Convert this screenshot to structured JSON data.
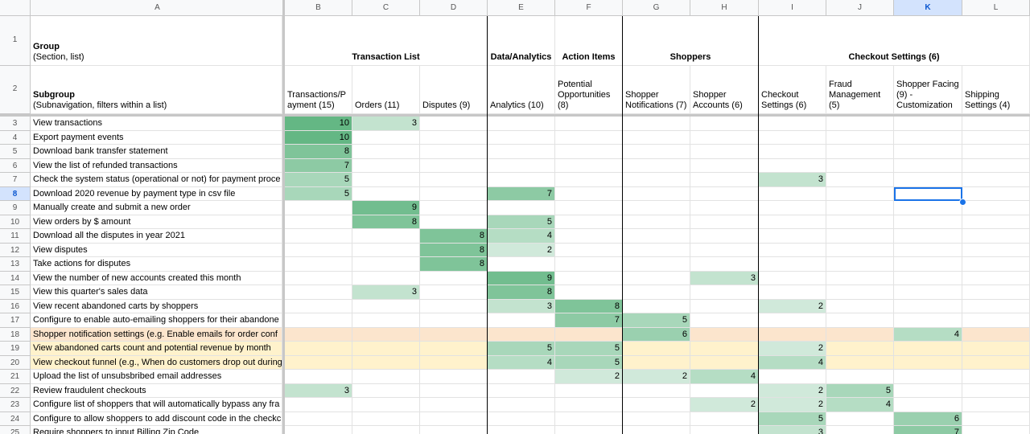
{
  "column_letters": [
    "A",
    "B",
    "C",
    "D",
    "E",
    "F",
    "G",
    "H",
    "I",
    "J",
    "K",
    "L"
  ],
  "selected_column": "K",
  "selected_row": "8",
  "header_rows": [
    {
      "row": "1",
      "title": "Group",
      "subtitle": "(Section, list)",
      "cells": [
        "Transaction List",
        null,
        null,
        "Data/Analytics",
        "Action Items",
        "Shoppers",
        null,
        "Checkout Settings (6)",
        null,
        null,
        null
      ]
    },
    {
      "row": "2",
      "title": "Subgroup",
      "subtitle": "(Subnavigation, filters within a list)",
      "cells": [
        "Transactions/P ayment (15)",
        "Orders (11)",
        "Disputes (9)",
        "Analytics (10)",
        "Potential Opportunities (8)",
        "Shopper Notifications (7)",
        "Shopper Accounts (6)",
        "Checkout Settings (6)",
        "Fraud Management (5)",
        "Shopper Facing (9) - Customization",
        "Shipping Settings (4)"
      ]
    }
  ],
  "rows": [
    {
      "row": "3",
      "label": "View transactions",
      "values": [
        10,
        3,
        null,
        null,
        null,
        null,
        null,
        null,
        null,
        null,
        null
      ]
    },
    {
      "row": "4",
      "label": "Export payment events",
      "values": [
        10,
        null,
        null,
        null,
        null,
        null,
        null,
        null,
        null,
        null,
        null
      ]
    },
    {
      "row": "5",
      "label": "Download bank transfer statement",
      "values": [
        8,
        null,
        null,
        null,
        null,
        null,
        null,
        null,
        null,
        null,
        null
      ]
    },
    {
      "row": "6",
      "label": "View the list of refunded transactions",
      "values": [
        7,
        null,
        null,
        null,
        null,
        null,
        null,
        null,
        null,
        null,
        null
      ]
    },
    {
      "row": "7",
      "label": "Check the system status (operational or not) for payment proce",
      "values": [
        5,
        null,
        null,
        null,
        null,
        null,
        null,
        3,
        null,
        null,
        null
      ]
    },
    {
      "row": "8",
      "label": "Download 2020 revenue by payment type in csv file",
      "values": [
        5,
        null,
        null,
        7,
        null,
        null,
        null,
        null,
        null,
        null,
        null
      ]
    },
    {
      "row": "9",
      "label": "Manually create and submit a new order",
      "values": [
        null,
        9,
        null,
        null,
        null,
        null,
        null,
        null,
        null,
        null,
        null
      ]
    },
    {
      "row": "10",
      "label": "View orders by $ amount",
      "values": [
        null,
        8,
        null,
        5,
        null,
        null,
        null,
        null,
        null,
        null,
        null
      ]
    },
    {
      "row": "11",
      "label": "Download all the disputes in year 2021",
      "values": [
        null,
        null,
        8,
        4,
        null,
        null,
        null,
        null,
        null,
        null,
        null
      ]
    },
    {
      "row": "12",
      "label": "View disputes",
      "values": [
        null,
        null,
        8,
        2,
        null,
        null,
        null,
        null,
        null,
        null,
        null
      ]
    },
    {
      "row": "13",
      "label": "Take actions for disputes",
      "values": [
        null,
        null,
        8,
        null,
        null,
        null,
        null,
        null,
        null,
        null,
        null
      ]
    },
    {
      "row": "14",
      "label": "View the number of new accounts created this month",
      "values": [
        null,
        null,
        null,
        9,
        null,
        null,
        3,
        null,
        null,
        null,
        null
      ]
    },
    {
      "row": "15",
      "label": "View this quarter's sales data",
      "values": [
        null,
        3,
        null,
        8,
        null,
        null,
        null,
        null,
        null,
        null,
        null
      ]
    },
    {
      "row": "16",
      "label": "View recent abandoned carts by shoppers",
      "values": [
        null,
        null,
        null,
        3,
        8,
        null,
        null,
        2,
        null,
        null,
        null
      ]
    },
    {
      "row": "17",
      "label": "Configure to enable auto-emailing shoppers for their abandone",
      "values": [
        null,
        null,
        null,
        null,
        7,
        5,
        null,
        null,
        null,
        null,
        null
      ]
    },
    {
      "row": "18",
      "label": "Shopper notification settings (e.g.  Enable emails for order conf",
      "values": [
        null,
        null,
        null,
        null,
        null,
        6,
        null,
        null,
        null,
        4,
        null
      ],
      "fill": "#fce5cd"
    },
    {
      "row": "19",
      "label": "View abandoned carts count and potential revenue by month",
      "values": [
        null,
        null,
        null,
        5,
        5,
        null,
        null,
        2,
        null,
        null,
        null
      ],
      "fill": "#fff2cc"
    },
    {
      "row": "20",
      "label": "View checkout funnel (e.g., When do customers drop out during",
      "values": [
        null,
        null,
        null,
        4,
        5,
        null,
        null,
        4,
        null,
        null,
        null
      ],
      "fill": "#fff2cc"
    },
    {
      "row": "21",
      "label": "Upload the list of unsubsbribed email addresses",
      "values": [
        null,
        null,
        null,
        null,
        2,
        2,
        4,
        null,
        null,
        null,
        null
      ]
    },
    {
      "row": "22",
      "label": "Review fraudulent checkouts",
      "values": [
        3,
        null,
        null,
        null,
        null,
        null,
        null,
        2,
        5,
        null,
        null
      ]
    },
    {
      "row": "23",
      "label": "Configure list of shoppers that will automatically bypass any fra",
      "values": [
        null,
        null,
        null,
        null,
        null,
        null,
        2,
        2,
        4,
        null,
        null
      ]
    },
    {
      "row": "24",
      "label": "Configure to allow shoppers to add discount code in the checkc",
      "values": [
        null,
        null,
        null,
        null,
        null,
        null,
        null,
        5,
        null,
        6,
        null
      ]
    },
    {
      "row": "25",
      "label": "Require shoppers to input Billing Zip Code",
      "values": [
        null,
        null,
        null,
        null,
        null,
        null,
        null,
        3,
        null,
        7,
        null
      ]
    }
  ]
}
